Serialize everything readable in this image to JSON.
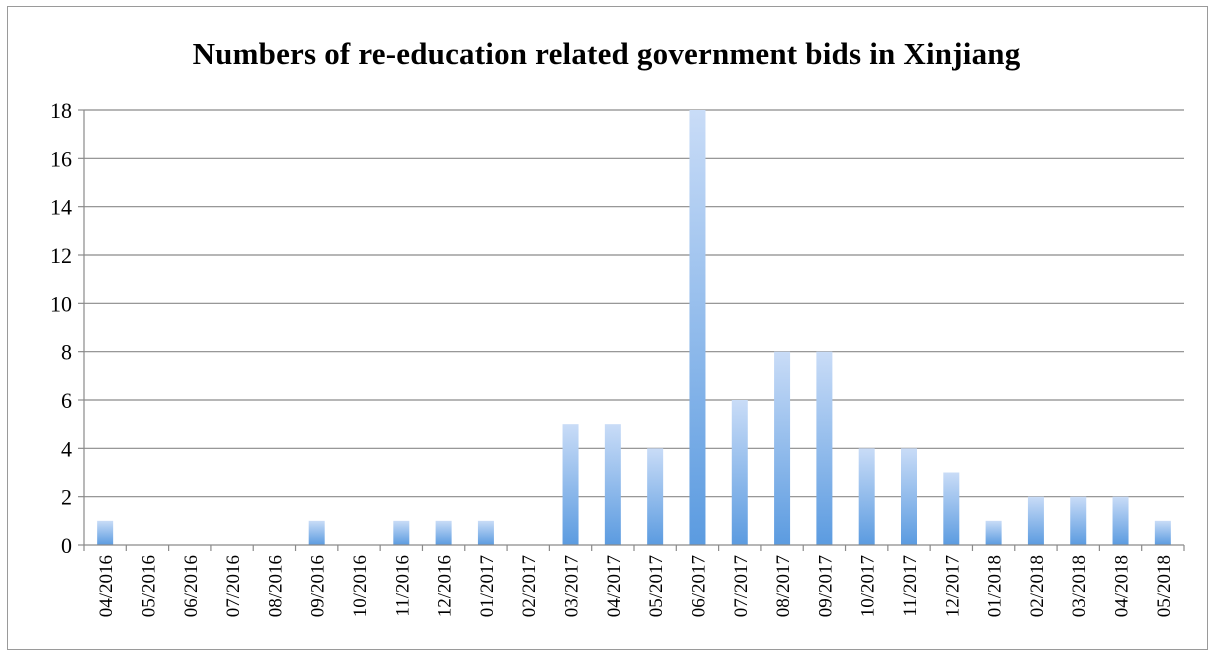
{
  "chart_data": {
    "type": "bar",
    "title": "Numbers of re-education related government bids in Xinjiang",
    "xlabel": "",
    "ylabel": "",
    "ylim": [
      0,
      18
    ],
    "yticks": [
      0,
      2,
      4,
      6,
      8,
      10,
      12,
      14,
      16,
      18
    ],
    "grid": true,
    "legend": "none",
    "categories": [
      "04/2016",
      "05/2016",
      "06/2016",
      "07/2016",
      "08/2016",
      "09/2016",
      "10/2016",
      "11/2016",
      "12/2016",
      "01/2017",
      "02/2017",
      "03/2017",
      "04/2017",
      "05/2017",
      "06/2017",
      "07/2017",
      "08/2017",
      "09/2017",
      "10/2017",
      "11/2017",
      "12/2017",
      "01/2018",
      "02/2018",
      "03/2018",
      "04/2018",
      "05/2018"
    ],
    "values": [
      1,
      0,
      0,
      0,
      0,
      1,
      0,
      1,
      1,
      1,
      0,
      5,
      5,
      4,
      18,
      6,
      8,
      8,
      4,
      4,
      3,
      1,
      2,
      2,
      2,
      1
    ],
    "colors": {
      "bar_light": "#c9dcf7",
      "bar_dark": "#5b9be0",
      "gridline": "#8a8a8a",
      "axis": "#8a8a8a"
    }
  }
}
